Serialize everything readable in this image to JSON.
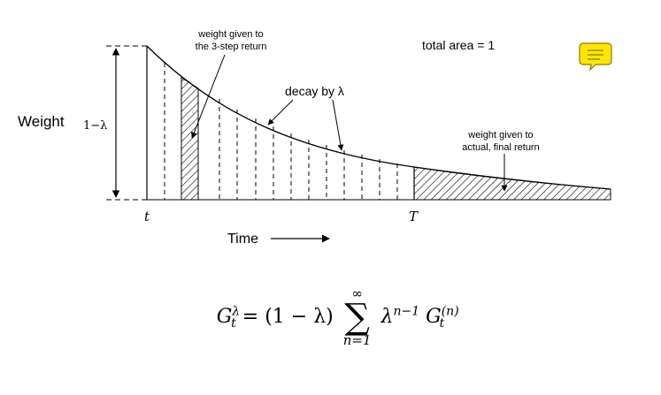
{
  "labels": {
    "weight": "Weight",
    "one_minus_lambda": "1−λ",
    "three_step_line1": "weight given to",
    "three_step_line2": "the 3-step return",
    "total_area": "total area = 1",
    "decay": "decay by λ",
    "final_line1": "weight given to",
    "final_line2": "actual, final return",
    "t": "t",
    "T": "T",
    "time": "Time"
  },
  "formula": {
    "lhs_base": "G",
    "lhs_sup": "λ",
    "lhs_sub": "t",
    "equals": "=",
    "factor": "(1 − λ)",
    "sum_top": "∞",
    "sigma": "∑",
    "sum_bottom": "n=1",
    "lambda": "λ",
    "lambda_exp": "n−1",
    "g_base": "G",
    "g_sup": "(n)",
    "g_sub": "t"
  },
  "note_icon": "speech-bubble-note-icon",
  "colors": {
    "note_fill": "#ffe600",
    "note_stroke": "#8a7a00",
    "ink": "#000000"
  }
}
